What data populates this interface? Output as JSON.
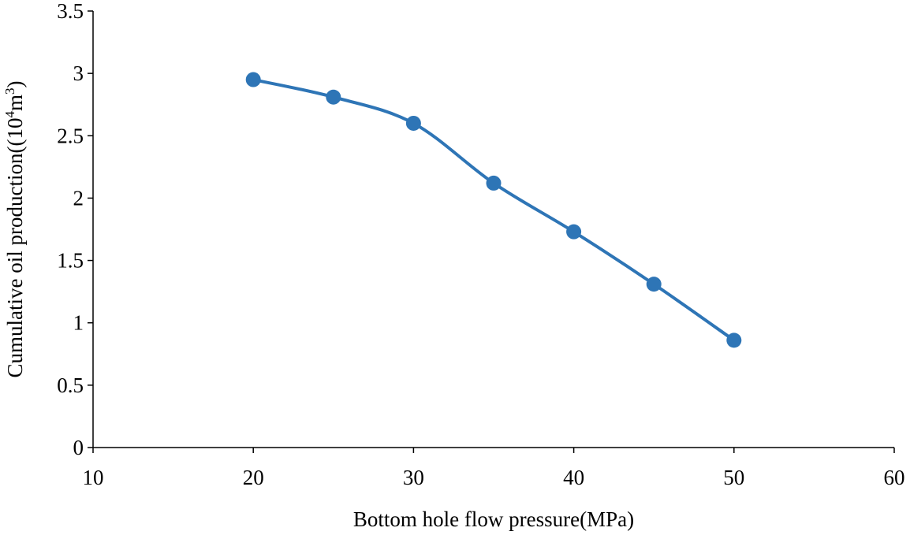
{
  "chart_data": {
    "type": "line",
    "title": "",
    "xlabel": "Bottom hole flow pressure(MPa)",
    "ylabel": {
      "prefix": "Cumulative oil production((10",
      "sup1": "4",
      "mid": "m",
      "sup2": "3",
      "suffix": ")"
    },
    "xlim": [
      10,
      60
    ],
    "ylim": [
      0,
      3.5
    ],
    "x_ticks": [
      "10",
      "20",
      "30",
      "40",
      "50",
      "60"
    ],
    "y_ticks": [
      "0",
      "0.5",
      "1",
      "1.5",
      "2",
      "2.5",
      "3",
      "3.5"
    ],
    "grid": false,
    "legend": "none",
    "series": [
      {
        "name": "Cumulative oil production",
        "color": "#2e75b6",
        "x": [
          20,
          25,
          30,
          35,
          40,
          45,
          50
        ],
        "y": [
          2.95,
          2.81,
          2.6,
          2.12,
          1.73,
          1.31,
          0.86
        ]
      }
    ]
  }
}
